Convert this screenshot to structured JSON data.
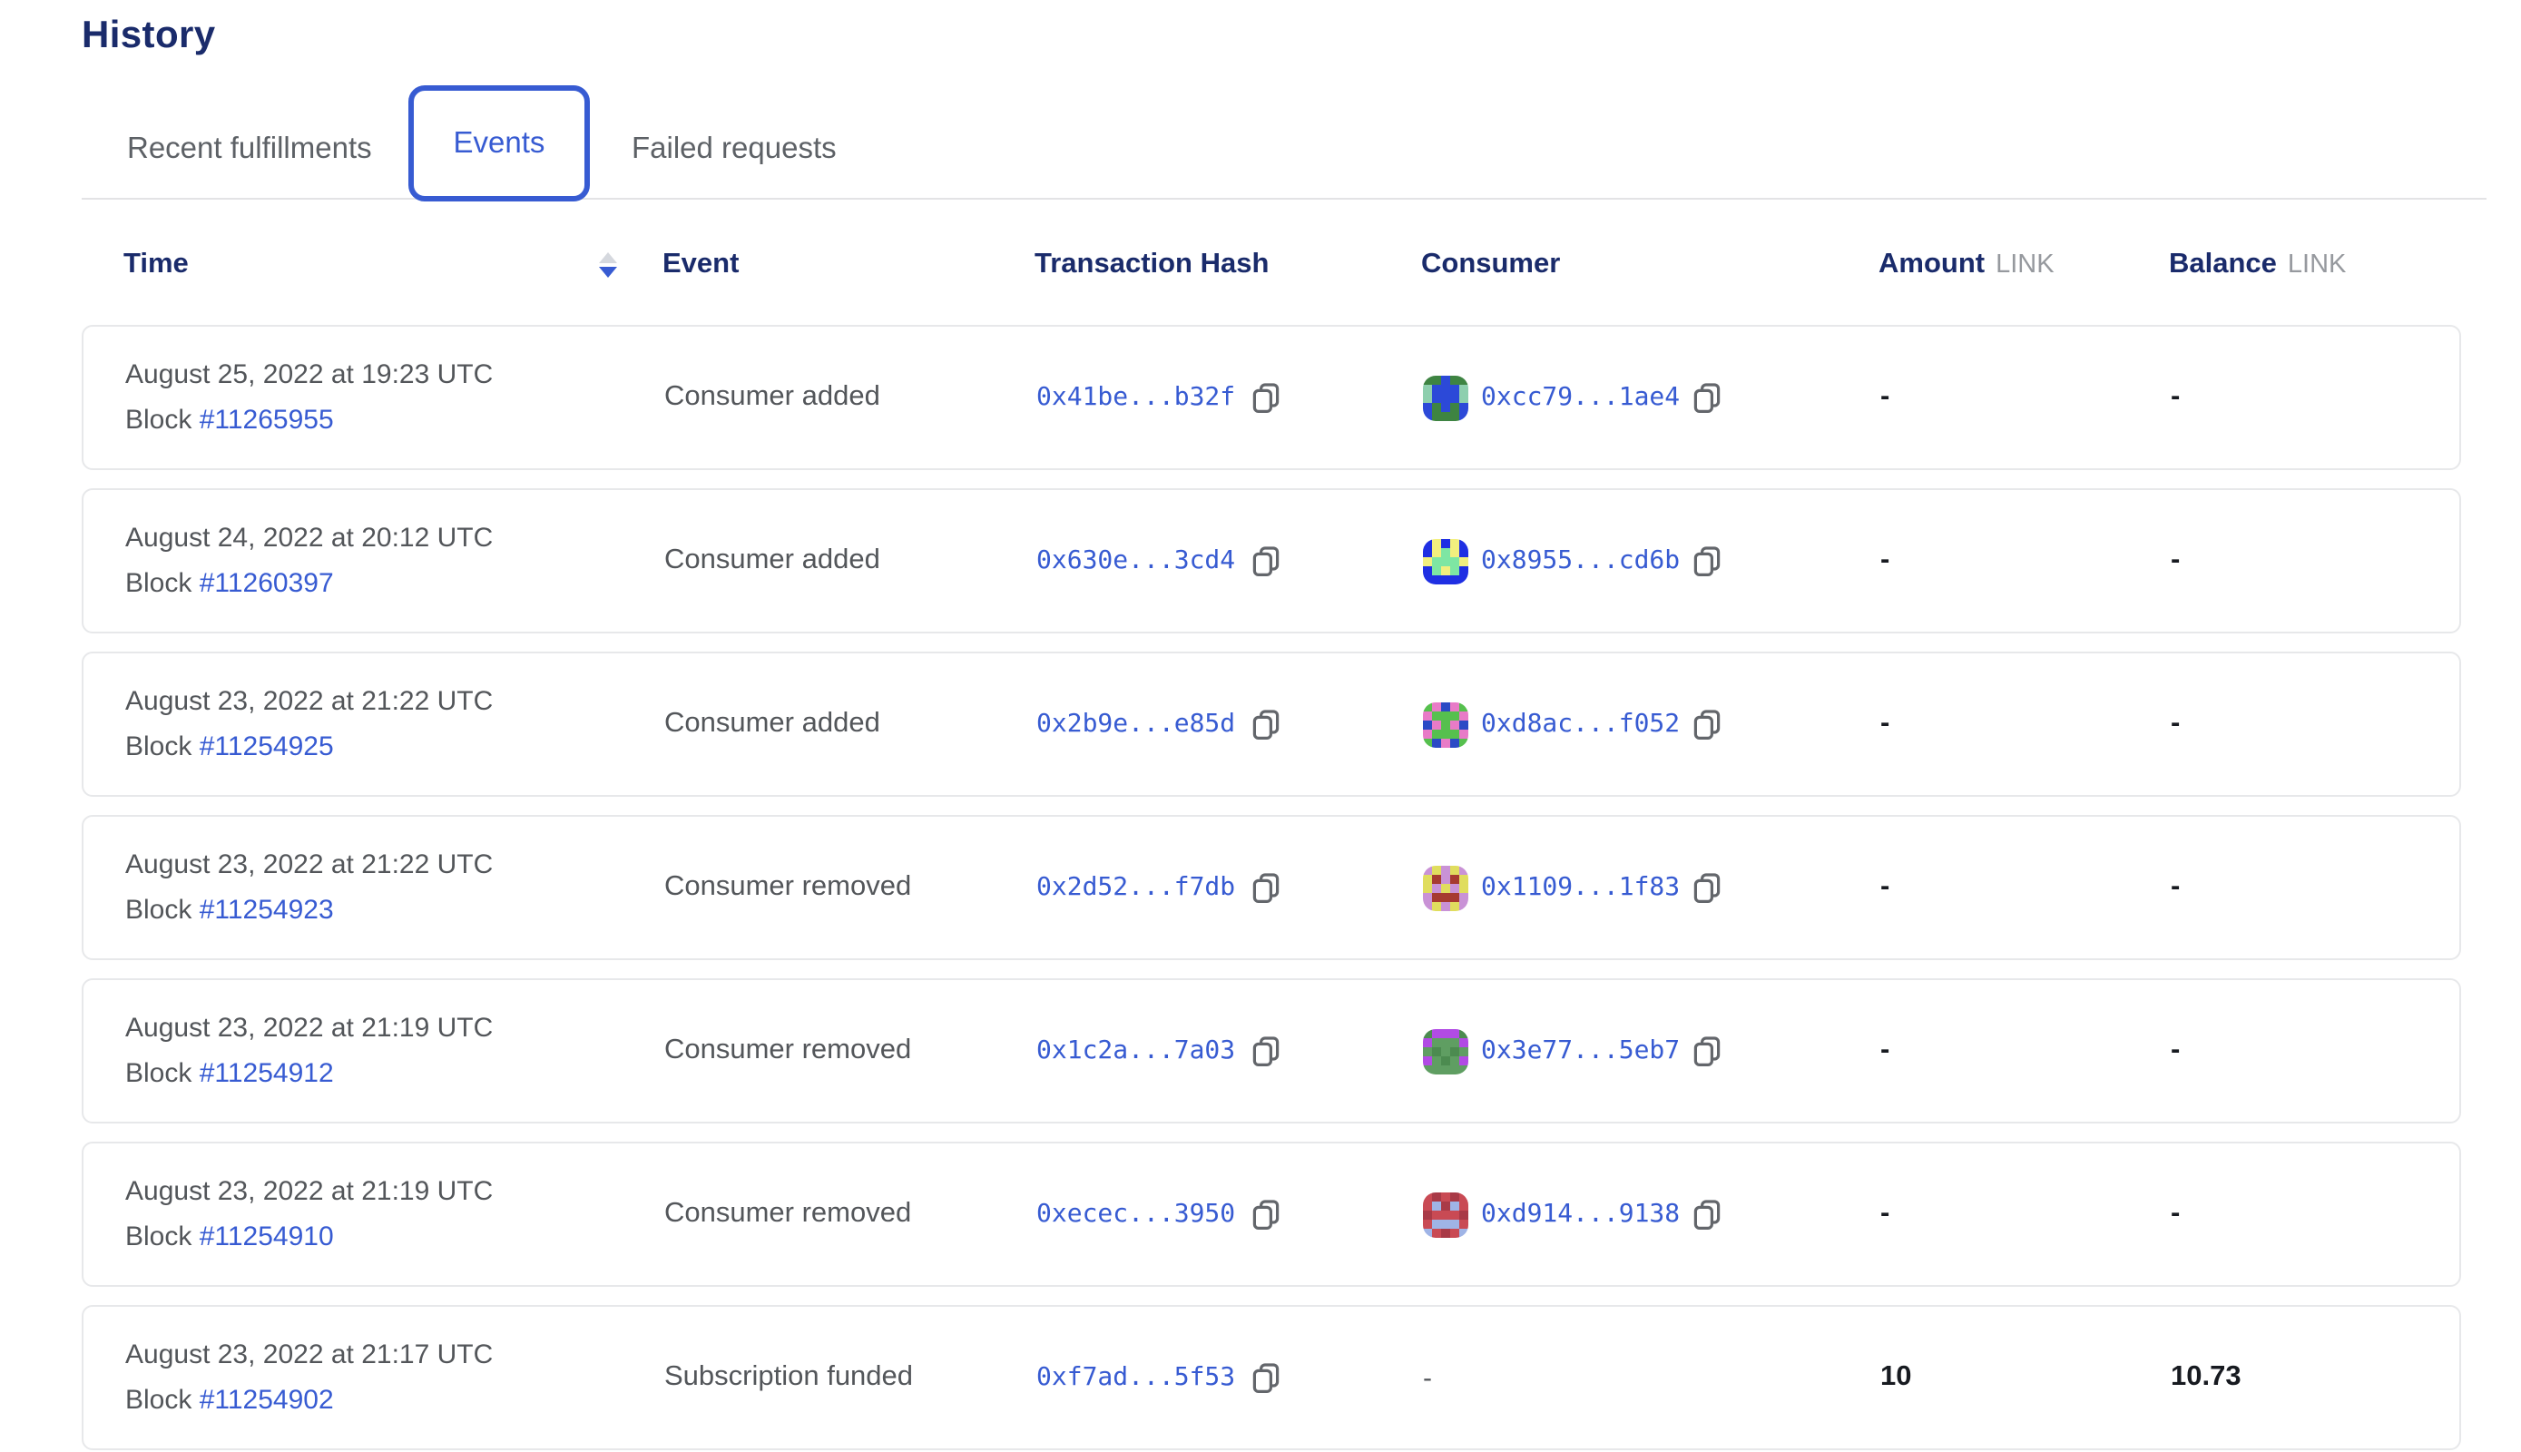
{
  "title": "History",
  "tabs": [
    {
      "label": "Recent fulfillments",
      "active": false
    },
    {
      "label": "Events",
      "active": true
    },
    {
      "label": "Failed requests",
      "active": false
    }
  ],
  "table": {
    "headers": {
      "time": "Time",
      "event": "Event",
      "tx": "Transaction Hash",
      "consumer": "Consumer",
      "amount": "Amount",
      "balance": "Balance",
      "link_unit": "LINK"
    },
    "rows": [
      {
        "date": "August 25, 2022 at 19:23 UTC",
        "block_label": "Block",
        "block": "#11265955",
        "event": "Consumer added",
        "tx": "0x41be...b32f",
        "consumer": "0xcc79...1ae4",
        "amount": "-",
        "balance": "-",
        "icon": {
          "palette": {
            "B": "#2c49d8",
            "G": "#3e8442",
            "T": "#8ecfae"
          },
          "grid": [
            "GGBGG",
            "TBBBT",
            "TBBBT",
            "BGBGB",
            "BGGGB"
          ]
        }
      },
      {
        "date": "August 24, 2022 at 20:12 UTC",
        "block_label": "Block",
        "block": "#11260397",
        "event": "Consumer added",
        "tx": "0x630e...3cd4",
        "consumer": "0x8955...cd6b",
        "amount": "-",
        "balance": "-",
        "icon": {
          "palette": {
            "B": "#1f2fe3",
            "Y": "#f2ef7e",
            "M": "#7ee6a3"
          },
          "grid": [
            "BYBYB",
            "BYMYB",
            "YMMMY",
            "BMYMB",
            "BBBBB"
          ]
        }
      },
      {
        "date": "August 23, 2022 at 21:22 UTC",
        "block_label": "Block",
        "block": "#11254925",
        "event": "Consumer added",
        "tx": "0x2b9e...e85d",
        "consumer": "0xd8ac...f052",
        "amount": "-",
        "balance": "-",
        "icon": {
          "palette": {
            "G": "#56c04e",
            "P": "#e87bc7",
            "B": "#2b4ac5"
          },
          "grid": [
            "GPBPG",
            "PGGGP",
            "BPGPB",
            "PGGGP",
            "GBPBG"
          ]
        }
      },
      {
        "date": "August 23, 2022 at 21:22 UTC",
        "block_label": "Block",
        "block": "#11254923",
        "event": "Consumer removed",
        "tx": "0x2d52...f7db",
        "consumer": "0x1109...1f83",
        "amount": "-",
        "balance": "-",
        "icon": {
          "palette": {
            "P": "#c992d6",
            "Y": "#e0dd5e",
            "R": "#a63a30"
          },
          "grid": [
            "PYPYP",
            "YRPRY",
            "YPYPY",
            "PRRRP",
            "PYPYP"
          ]
        }
      },
      {
        "date": "August 23, 2022 at 21:19 UTC",
        "block_label": "Block",
        "block": "#11254912",
        "event": "Consumer removed",
        "tx": "0x1c2a...7a03",
        "consumer": "0x3e77...5eb7",
        "amount": "-",
        "balance": "-",
        "icon": {
          "palette": {
            "G": "#5f9e62",
            "D": "#4c8b50",
            "U": "#b14be4"
          },
          "grid": [
            "DUUUD",
            "UGGGU",
            "GDGDG",
            "UGDGU",
            "GGGGG"
          ]
        }
      },
      {
        "date": "August 23, 2022 at 21:19 UTC",
        "block_label": "Block",
        "block": "#11254910",
        "event": "Consumer removed",
        "tx": "0xecec...3950",
        "consumer": "0xd914...9138",
        "amount": "-",
        "balance": "-",
        "icon": {
          "palette": {
            "R": "#c94a54",
            "D": "#a93a47",
            "L": "#9fb4e6"
          },
          "grid": [
            "RDRDR",
            "RLDLR",
            "DRRRD",
            "RLLLR",
            "LRDRL"
          ]
        }
      },
      {
        "date": "August 23, 2022 at 21:17 UTC",
        "block_label": "Block",
        "block": "#11254902",
        "event": "Subscription funded",
        "tx": "0xf7ad...5f53",
        "consumer": "-",
        "amount": "10",
        "balance": "10.73",
        "icon": null
      }
    ]
  },
  "colors": {
    "accent": "#375BD2",
    "heading": "#1a2b6b",
    "gray": "#53565a",
    "linkgray": "#96999e",
    "border": "#e7e8ea",
    "dark": "#171a20"
  }
}
